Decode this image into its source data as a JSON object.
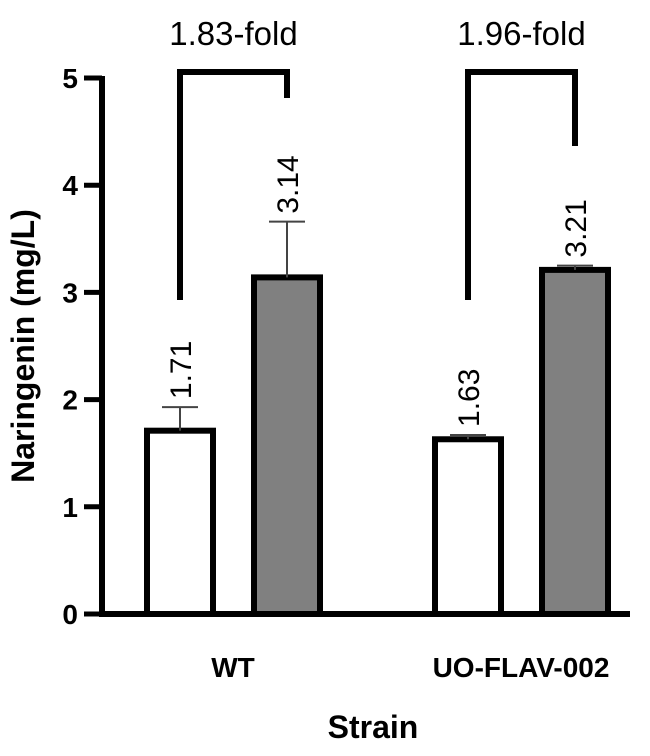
{
  "chart_data": {
    "type": "bar",
    "title": "",
    "xlabel": "Strain",
    "ylabel": "Naringenin (mg/L)",
    "ylim": [
      0,
      5
    ],
    "yticks": [
      0,
      1,
      2,
      3,
      4,
      5
    ],
    "grid": false,
    "legend": null,
    "categories": [
      "WT",
      "UO-FLAV-002"
    ],
    "series": [
      {
        "color": "#ffffff",
        "values": [
          1.71,
          1.63
        ],
        "errors": [
          0.22,
          0.04
        ],
        "labels": [
          "1.71",
          "1.63"
        ]
      },
      {
        "color": "#808080",
        "values": [
          3.14,
          3.21
        ],
        "errors": [
          0.52,
          0.04
        ],
        "labels": [
          "3.14",
          "3.21"
        ]
      }
    ],
    "annotations": [
      "1.83-fold",
      "1.96-fold"
    ]
  }
}
